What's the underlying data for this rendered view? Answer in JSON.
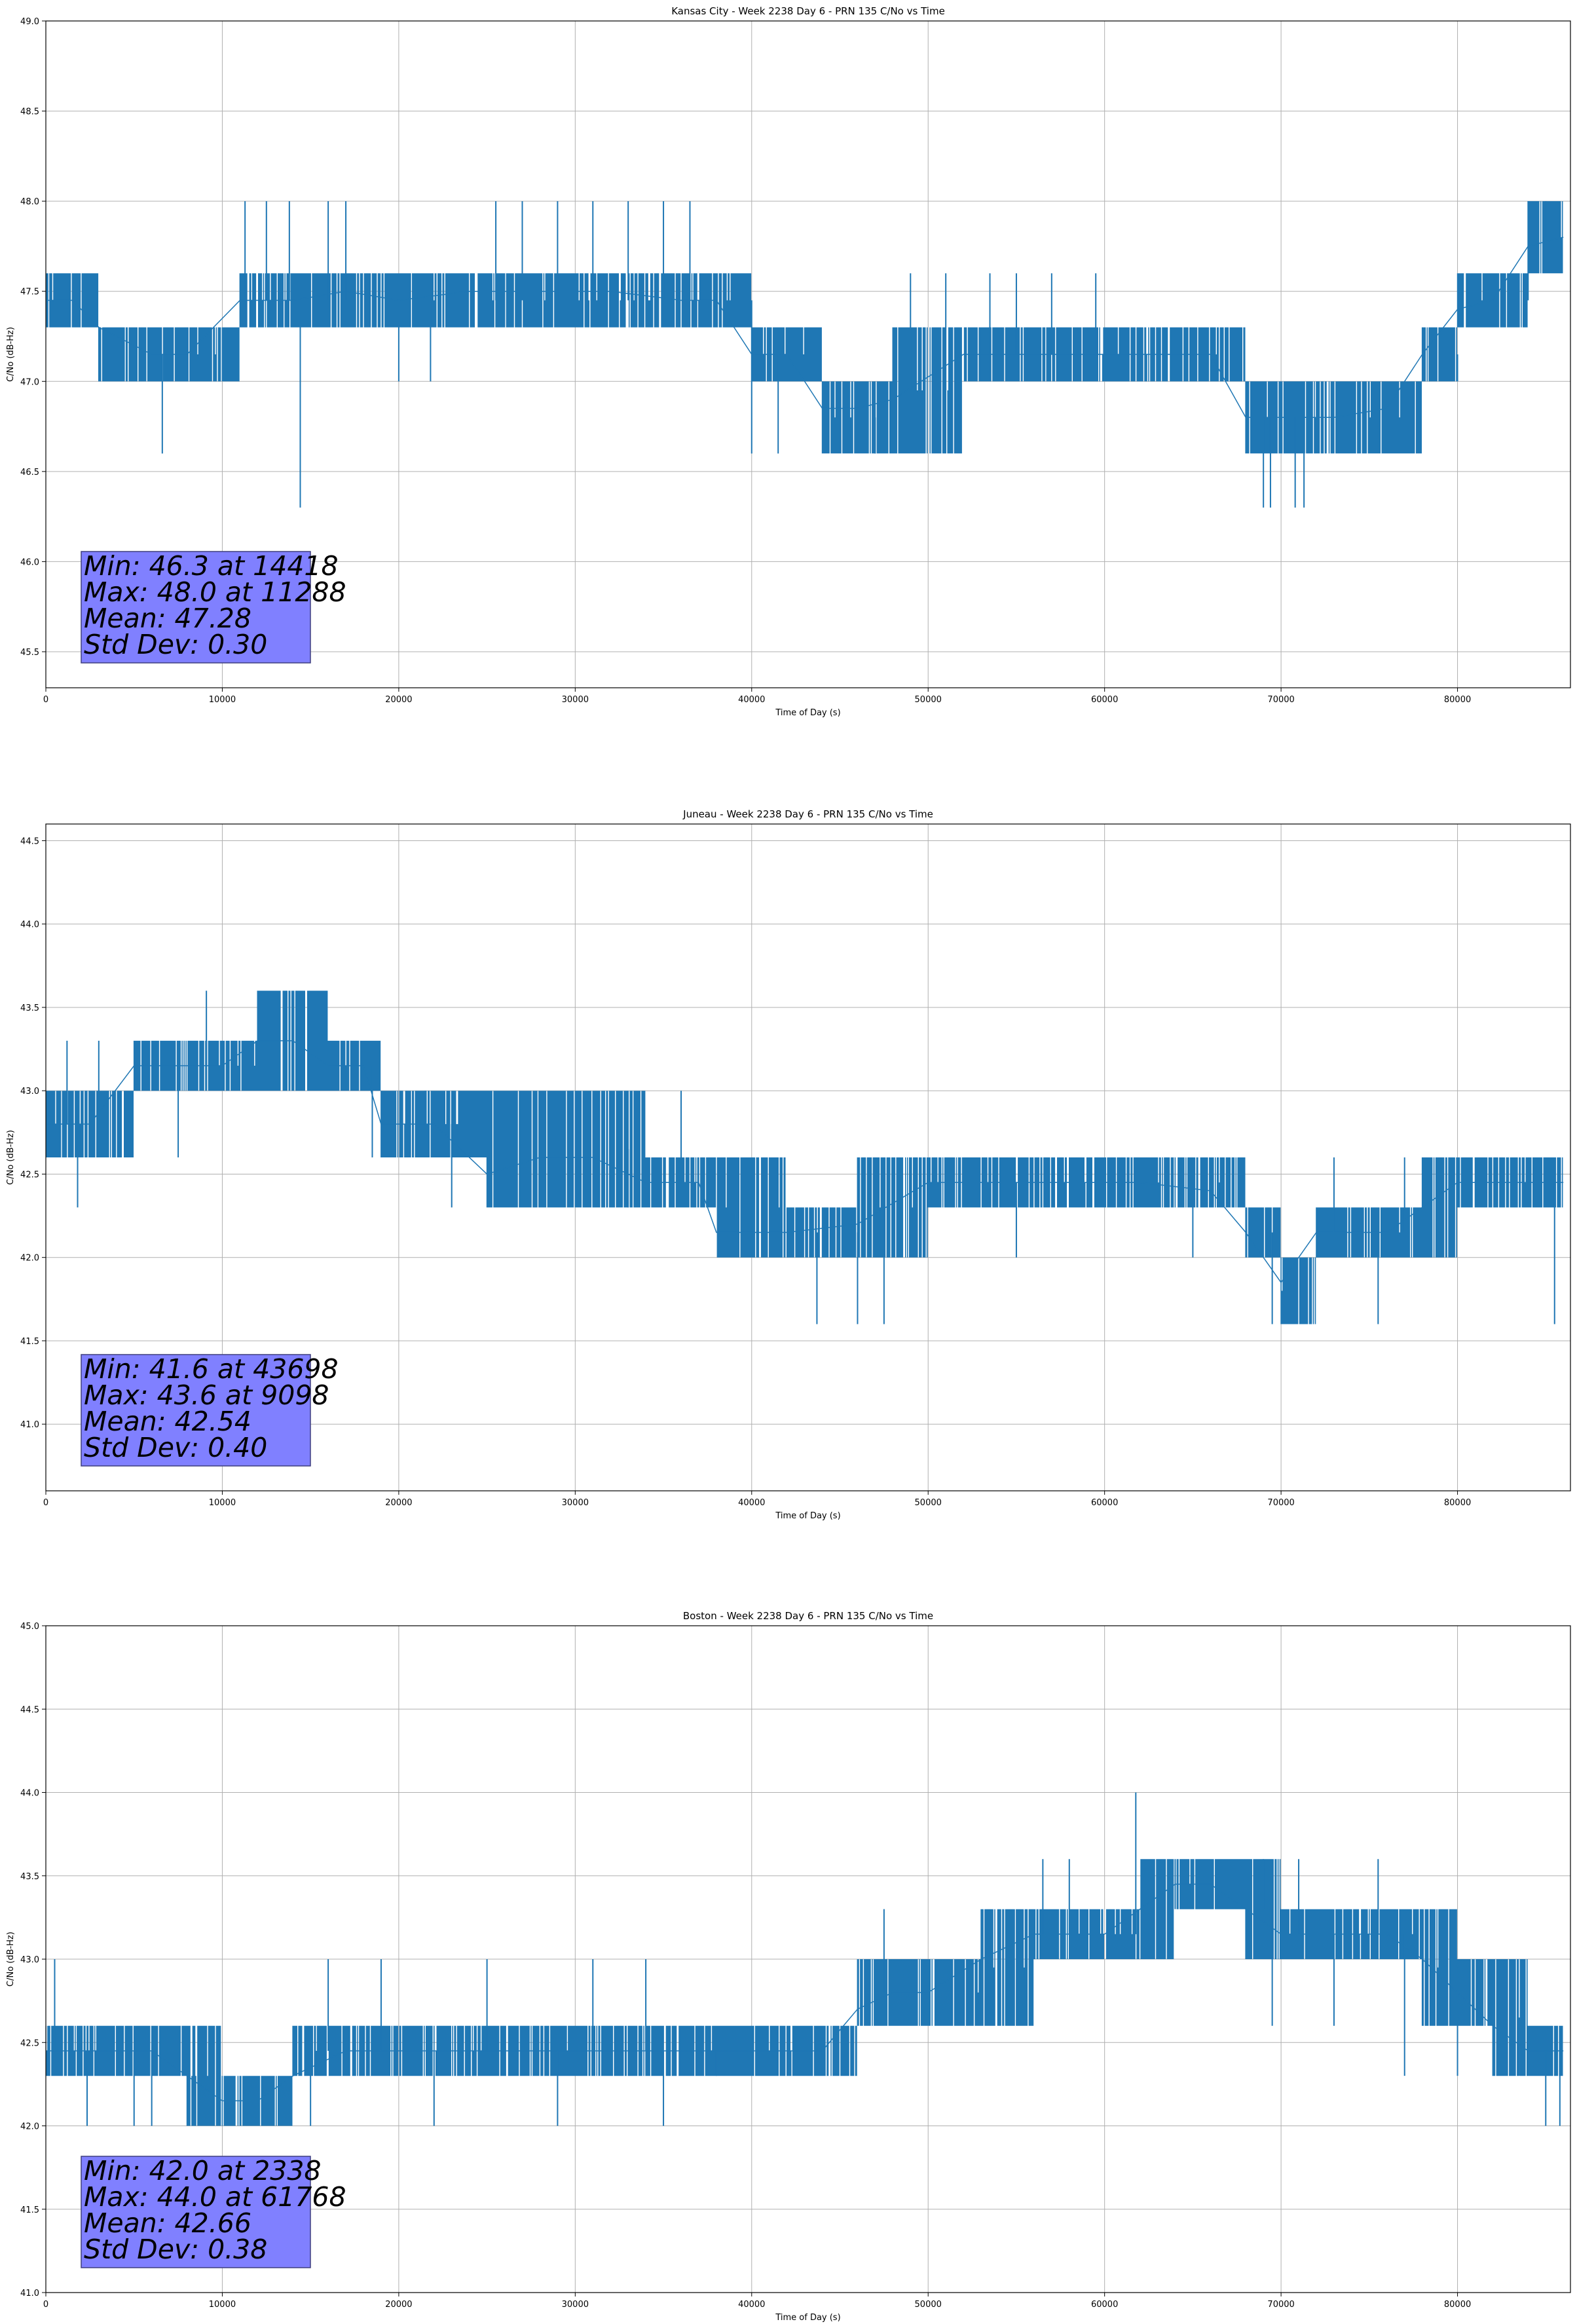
{
  "colors": {
    "series": "#1f77b4",
    "grid": "#b0b0b0",
    "stats_box_fill": "#8080ff",
    "stats_box_edge": "#3f3f7f",
    "axes": "#000000"
  },
  "chart_data": [
    {
      "type": "line",
      "title": "Kansas City - Week 2238 Day 6 - PRN 135 C/No vs Time",
      "xlabel": "Time of Day (s)",
      "ylabel": "C/No (dB-Hz)",
      "xlim": [
        0,
        86400
      ],
      "ylim": [
        45.3,
        49.0
      ],
      "xticks": [
        0,
        10000,
        20000,
        30000,
        40000,
        50000,
        60000,
        70000,
        80000
      ],
      "yticks": [
        45.5,
        46.0,
        46.5,
        47.0,
        47.5,
        48.0,
        48.5,
        49.0
      ],
      "ytick_decimals": 1,
      "grid": true,
      "series": [
        {
          "x": [
            0,
            1500,
            3000,
            6000,
            8000,
            11000,
            14000,
            17000,
            20000,
            24000,
            28000,
            32000,
            36000,
            38000,
            40000,
            42000,
            44000,
            46000,
            48000,
            52000,
            56000,
            60000,
            64000,
            66000,
            68000,
            70000,
            73000,
            76000,
            78000,
            80000,
            82000,
            84000,
            86000
          ],
          "values": [
            47.45,
            47.45,
            47.3,
            47.15,
            47.15,
            47.45,
            47.45,
            47.5,
            47.45,
            47.5,
            47.5,
            47.5,
            47.45,
            47.45,
            47.15,
            47.15,
            46.85,
            46.85,
            46.9,
            47.15,
            47.15,
            47.15,
            47.15,
            47.15,
            46.8,
            46.8,
            46.8,
            46.85,
            47.15,
            47.4,
            47.45,
            47.75,
            47.8
          ],
          "band_low": [
            47.3,
            47.3,
            47.0,
            47.0,
            47.0,
            47.3,
            47.3,
            47.3,
            47.3,
            47.3,
            47.3,
            47.3,
            47.3,
            47.3,
            47.0,
            47.0,
            46.6,
            46.6,
            46.6,
            47.0,
            47.0,
            47.0,
            47.0,
            47.0,
            46.6,
            46.6,
            46.6,
            46.6,
            47.0,
            47.3,
            47.3,
            47.6,
            47.6
          ],
          "band_high": [
            47.6,
            47.6,
            47.3,
            47.3,
            47.3,
            47.6,
            47.6,
            47.6,
            47.6,
            47.6,
            47.6,
            47.6,
            47.6,
            47.6,
            47.3,
            47.3,
            47.0,
            47.0,
            47.3,
            47.3,
            47.3,
            47.3,
            47.3,
            47.3,
            47.0,
            47.0,
            47.0,
            47.0,
            47.3,
            47.6,
            47.6,
            48.0,
            48.0
          ],
          "spikes": [
            [
              6600,
              46.6
            ],
            [
              14418,
              46.3
            ],
            [
              11288,
              48.0
            ],
            [
              12500,
              48.0
            ],
            [
              13800,
              48.0
            ],
            [
              16000,
              48.0
            ],
            [
              17000,
              48.0
            ],
            [
              20000,
              47.0
            ],
            [
              21800,
              47.0
            ],
            [
              25500,
              48.0
            ],
            [
              27000,
              48.0
            ],
            [
              29000,
              48.0
            ],
            [
              31000,
              48.0
            ],
            [
              33000,
              48.0
            ],
            [
              35000,
              48.0
            ],
            [
              36500,
              48.0
            ],
            [
              40000,
              46.6
            ],
            [
              41500,
              46.6
            ],
            [
              47000,
              46.6
            ],
            [
              49000,
              47.6
            ],
            [
              51000,
              47.6
            ],
            [
              53500,
              47.6
            ],
            [
              55000,
              47.6
            ],
            [
              57000,
              47.6
            ],
            [
              59500,
              47.6
            ],
            [
              69000,
              46.3
            ],
            [
              69400,
              46.3
            ],
            [
              70800,
              46.3
            ],
            [
              71300,
              46.3
            ],
            [
              80000,
              47.0
            ],
            [
              84000,
              48.0
            ],
            [
              85000,
              48.0
            ]
          ]
        }
      ],
      "stats_lines": [
        "Min: 46.3 at 14418",
        "Max: 48.0 at 11288",
        "Mean: 47.28",
        "Std Dev: 0.30"
      ]
    },
    {
      "type": "line",
      "title": "Juneau - Week 2238 Day 6 - PRN 135 C/No vs Time",
      "xlabel": "Time of Day (s)",
      "ylabel": "C/No (dB-Hz)",
      "xlim": [
        0,
        86400
      ],
      "ylim": [
        40.6,
        44.6
      ],
      "xticks": [
        0,
        10000,
        20000,
        30000,
        40000,
        50000,
        60000,
        70000,
        80000
      ],
      "yticks": [
        41.0,
        41.5,
        42.0,
        42.5,
        43.0,
        43.5,
        44.0,
        44.5
      ],
      "ytick_decimals": 1,
      "grid": true,
      "series": [
        {
          "x": [
            0,
            2500,
            5000,
            7500,
            10000,
            12000,
            14000,
            16000,
            18000,
            19000,
            22000,
            25000,
            28000,
            31000,
            34000,
            37000,
            38000,
            42000,
            46000,
            50000,
            54000,
            58000,
            62000,
            66000,
            68000,
            70000,
            72000,
            74000,
            76000,
            78000,
            80000,
            83000,
            86000
          ],
          "values": [
            42.8,
            42.8,
            43.15,
            43.15,
            43.15,
            43.3,
            43.3,
            43.15,
            43.15,
            42.8,
            42.8,
            42.5,
            42.6,
            42.6,
            42.45,
            42.45,
            42.15,
            42.15,
            42.2,
            42.45,
            42.45,
            42.45,
            42.45,
            42.4,
            42.15,
            41.85,
            42.15,
            42.15,
            42.15,
            42.3,
            42.45,
            42.45,
            42.45
          ],
          "band_low": [
            42.6,
            42.6,
            43.0,
            43.0,
            43.0,
            43.0,
            43.0,
            43.0,
            43.0,
            42.6,
            42.6,
            42.3,
            42.3,
            42.3,
            42.3,
            42.3,
            42.0,
            42.0,
            42.0,
            42.3,
            42.3,
            42.3,
            42.3,
            42.3,
            42.0,
            41.6,
            42.0,
            42.0,
            42.0,
            42.0,
            42.3,
            42.3,
            42.3
          ],
          "band_high": [
            43.0,
            43.0,
            43.3,
            43.3,
            43.3,
            43.6,
            43.6,
            43.3,
            43.3,
            43.0,
            43.0,
            43.0,
            43.0,
            43.0,
            42.6,
            42.6,
            42.6,
            42.3,
            42.6,
            42.6,
            42.6,
            42.6,
            42.6,
            42.6,
            42.3,
            42.0,
            42.3,
            42.3,
            42.3,
            42.6,
            42.6,
            42.6,
            42.6
          ],
          "spikes": [
            [
              1800,
              42.3
            ],
            [
              1200,
              43.3
            ],
            [
              3000,
              43.3
            ],
            [
              9098,
              43.6
            ],
            [
              7500,
              42.6
            ],
            [
              18500,
              42.6
            ],
            [
              21500,
              43.0
            ],
            [
              23000,
              42.3
            ],
            [
              33000,
              42.3
            ],
            [
              36000,
              43.0
            ],
            [
              43698,
              41.6
            ],
            [
              46000,
              41.6
            ],
            [
              47500,
              41.6
            ],
            [
              55000,
              42.0
            ],
            [
              65000,
              42.0
            ],
            [
              69500,
              41.6
            ],
            [
              75500,
              41.6
            ],
            [
              73000,
              42.6
            ],
            [
              77000,
              42.6
            ],
            [
              85500,
              41.6
            ]
          ]
        }
      ],
      "stats_lines": [
        "Min: 41.6 at 43698",
        "Max: 43.6 at 9098",
        "Mean: 42.54",
        "Std Dev: 0.40"
      ]
    },
    {
      "type": "line",
      "title": "Boston - Week 2238 Day 6 - PRN 135 C/No vs Time",
      "xlabel": "Time of Day (s)",
      "ylabel": "C/No (dB-Hz)",
      "xlim": [
        0,
        86400
      ],
      "ylim": [
        41.0,
        45.0
      ],
      "xticks": [
        0,
        10000,
        20000,
        30000,
        40000,
        50000,
        60000,
        70000,
        80000
      ],
      "yticks": [
        41.0,
        41.5,
        42.0,
        42.5,
        43.0,
        43.5,
        44.0,
        44.5,
        45.0
      ],
      "ytick_decimals": 1,
      "grid": true,
      "series": [
        {
          "x": [
            0,
            2000,
            4000,
            6000,
            8000,
            10000,
            12000,
            14000,
            17000,
            20000,
            24000,
            28000,
            32000,
            36000,
            40000,
            44000,
            46000,
            48000,
            50000,
            53000,
            56000,
            58000,
            60000,
            62000,
            64000,
            66000,
            68000,
            70000,
            72000,
            74000,
            76000,
            78000,
            80000,
            82000,
            84000,
            86000
          ],
          "values": [
            42.45,
            42.45,
            42.45,
            42.45,
            42.3,
            42.15,
            42.15,
            42.3,
            42.45,
            42.45,
            42.45,
            42.45,
            42.45,
            42.45,
            42.45,
            42.45,
            42.7,
            42.8,
            42.8,
            43.0,
            43.15,
            43.15,
            43.15,
            43.3,
            43.45,
            43.45,
            43.3,
            43.15,
            43.15,
            43.15,
            43.15,
            43.0,
            42.8,
            42.6,
            42.45,
            42.45
          ],
          "band_low": [
            42.3,
            42.3,
            42.3,
            42.3,
            42.0,
            42.0,
            42.0,
            42.3,
            42.3,
            42.3,
            42.3,
            42.3,
            42.3,
            42.3,
            42.3,
            42.3,
            42.6,
            42.6,
            42.6,
            42.6,
            43.0,
            43.0,
            43.0,
            43.0,
            43.3,
            43.3,
            43.0,
            43.0,
            43.0,
            43.0,
            43.0,
            42.6,
            42.6,
            42.3,
            42.3,
            42.3
          ],
          "band_high": [
            42.6,
            42.6,
            42.6,
            42.6,
            42.6,
            42.3,
            42.3,
            42.6,
            42.6,
            42.6,
            42.6,
            42.6,
            42.6,
            42.6,
            42.6,
            42.6,
            43.0,
            43.0,
            43.0,
            43.3,
            43.3,
            43.3,
            43.3,
            43.6,
            43.6,
            43.6,
            43.6,
            43.3,
            43.3,
            43.3,
            43.3,
            43.3,
            43.0,
            43.0,
            42.6,
            42.6
          ],
          "spikes": [
            [
              500,
              43.0
            ],
            [
              2338,
              42.0
            ],
            [
              5000,
              42.0
            ],
            [
              6000,
              42.0
            ],
            [
              15000,
              42.0
            ],
            [
              16000,
              43.0
            ],
            [
              19000,
              43.0
            ],
            [
              22000,
              42.0
            ],
            [
              25000,
              43.0
            ],
            [
              29000,
              42.0
            ],
            [
              31000,
              43.0
            ],
            [
              34000,
              43.0
            ],
            [
              35000,
              42.0
            ],
            [
              38000,
              42.3
            ],
            [
              47500,
              43.3
            ],
            [
              56500,
              43.6
            ],
            [
              58000,
              43.6
            ],
            [
              61768,
              44.0
            ],
            [
              64000,
              43.6
            ],
            [
              69000,
              43.6
            ],
            [
              71000,
              43.6
            ],
            [
              75500,
              43.6
            ],
            [
              69500,
              42.6
            ],
            [
              73000,
              42.6
            ],
            [
              77000,
              42.3
            ],
            [
              80000,
              42.3
            ],
            [
              83500,
              42.3
            ],
            [
              85000,
              42.0
            ],
            [
              85800,
              42.0
            ]
          ]
        }
      ],
      "stats_lines": [
        "Min: 42.0 at 2338",
        "Max: 44.0 at 61768",
        "Mean: 42.66",
        "Std Dev: 0.38"
      ]
    }
  ]
}
